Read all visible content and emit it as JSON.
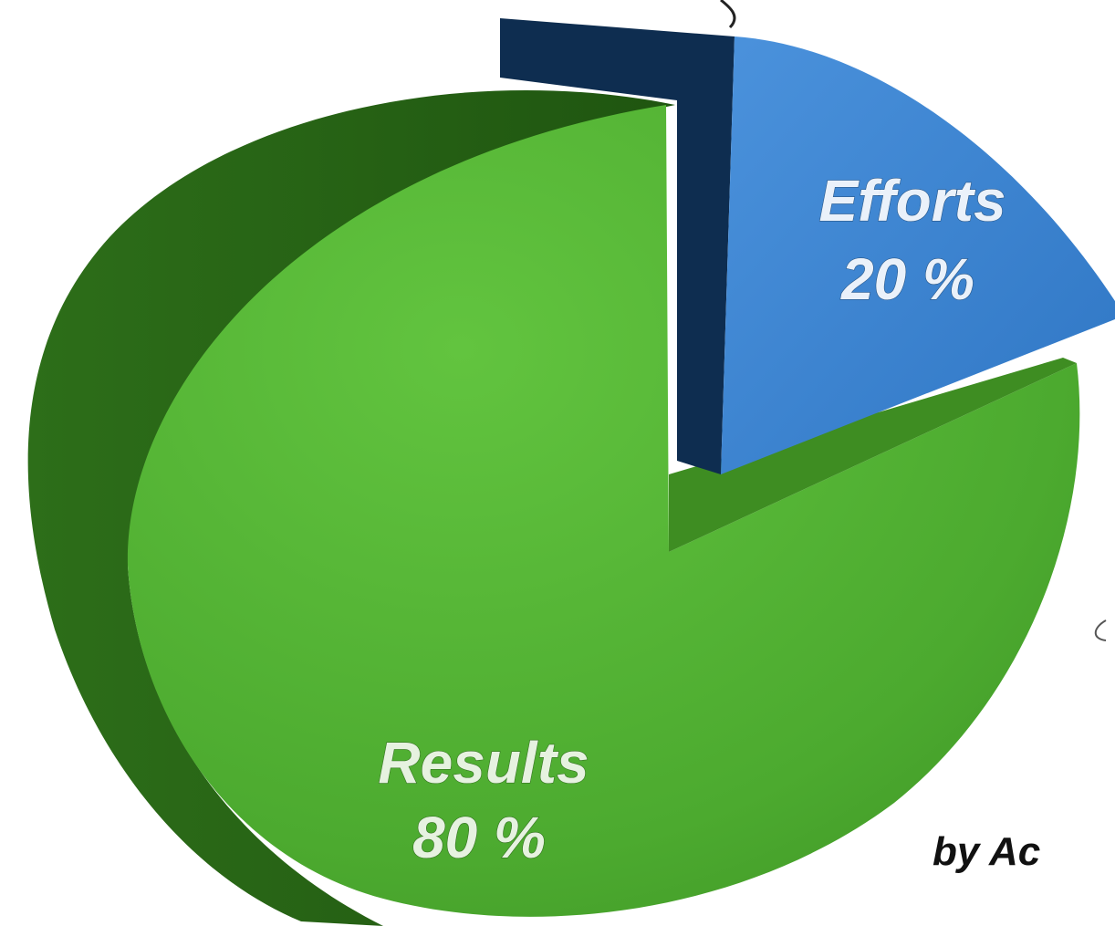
{
  "chart_data": {
    "type": "pie",
    "slices": [
      {
        "label": "Efforts",
        "value_text": "20 %",
        "value": 20,
        "color": "#3f86d4",
        "exploded": true
      },
      {
        "label": "Results",
        "value_text": "80 %",
        "value": 80,
        "color": "#4fae32"
      }
    ]
  },
  "byline": "by Ac",
  "colors": {
    "results_top": "#4fae32",
    "results_side": "#2a6a16",
    "efforts_top": "#3f86d4",
    "efforts_side": "#0f2f52"
  }
}
